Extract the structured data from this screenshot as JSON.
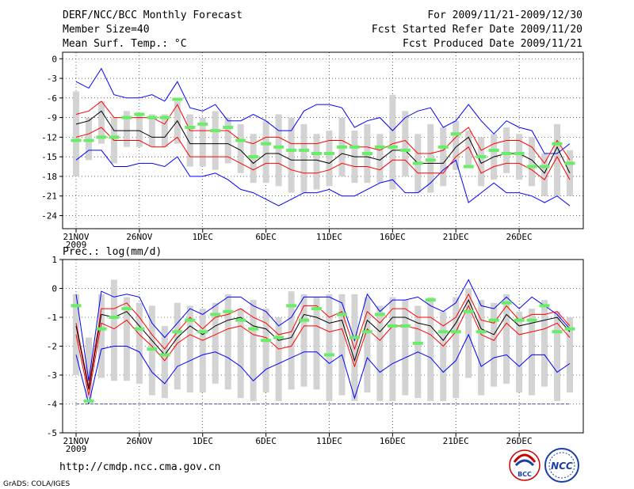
{
  "header": {
    "left": [
      "DERF/NCC/BCC Monthly Forecast",
      "Member Size=40",
      "Mean Surf. Temp.: °C"
    ],
    "right": [
      "For 2009/11/21-2009/12/30",
      "Fcst Started Refer Date 2009/11/20",
      "Fcst Produced Date 2009/11/21"
    ]
  },
  "footer": {
    "url": "http://cmdp.ncc.cma.gov.cn",
    "credit": "GrADS: COLA/IGES",
    "logo1": "BCC",
    "logo2": "NCC"
  },
  "colors": {
    "outer": "#0000ff",
    "inner": "#ff0000",
    "mean": "#000000",
    "box": "#d3d3d3",
    "marker": "#66ee66",
    "dash": "#5555aa"
  },
  "chart_data": [
    {
      "type": "line",
      "title": "Mean Surf. Temp.: °C",
      "xticks": [
        "21NOV",
        "26NOV",
        "1DEC",
        "6DEC",
        "11DEC",
        "16DEC",
        "21DEC",
        "26DEC"
      ],
      "xtick_year": "2009",
      "ylim": [
        -26,
        1
      ],
      "yticks": [
        0,
        -3,
        -6,
        -9,
        -12,
        -15,
        -18,
        -21,
        -24
      ],
      "days": 40,
      "series": [
        {
          "name": "max",
          "values": [
            -3.5,
            -4.5,
            -1.5,
            -5.5,
            -6,
            -6,
            -5.5,
            -6.5,
            -3.5,
            -7.5,
            -8,
            -7,
            -9.5,
            -9.5,
            -8.5,
            -9.5,
            -11,
            -11,
            -8,
            -7,
            -7,
            -7.5,
            -10.5,
            -9.5,
            -9,
            -11,
            -9,
            -8,
            -7.5,
            -10.5,
            -9.5,
            -7,
            -9.5,
            -11.5,
            -9.5,
            -10.5,
            -11,
            -14.5,
            -14.5,
            -13
          ]
        },
        {
          "name": "upper",
          "values": [
            -8.5,
            -8,
            -6.5,
            -9,
            -9,
            -9,
            -9,
            -10,
            -7,
            -11,
            -11,
            -11,
            -11,
            -12.5,
            -13,
            -12,
            -12,
            -13,
            -13,
            -13,
            -12.5,
            -12.5,
            -13.5,
            -13.5,
            -14,
            -13,
            -12.5,
            -14.5,
            -14.5,
            -14,
            -12,
            -10.5,
            -14,
            -13,
            -12.5,
            -12.5,
            -13.5,
            -16,
            -12.5,
            -15.5
          ]
        },
        {
          "name": "mean",
          "values": [
            -10,
            -9.5,
            -8,
            -11,
            -11,
            -11,
            -12,
            -12,
            -9.5,
            -13,
            -13,
            -13,
            -13,
            -14,
            -16,
            -14.5,
            -14.5,
            -15.5,
            -15.5,
            -15.5,
            -16,
            -14.5,
            -15,
            -15,
            -15.5,
            -14,
            -14,
            -16,
            -16,
            -16,
            -13.5,
            -12,
            -16,
            -15,
            -14.5,
            -14.5,
            -15.5,
            -17.5,
            -13.5,
            -17.5
          ]
        },
        {
          "name": "lower",
          "values": [
            -12,
            -11.5,
            -10.5,
            -12.5,
            -12.5,
            -12.5,
            -13.5,
            -13.5,
            -12,
            -15,
            -15,
            -15,
            -15,
            -16,
            -17,
            -16,
            -16,
            -17,
            -17.5,
            -17.5,
            -17,
            -16,
            -16.5,
            -16.5,
            -17,
            -15.5,
            -15.5,
            -17.5,
            -17.5,
            -17.5,
            -15,
            -13.5,
            -17.5,
            -16.5,
            -16,
            -16,
            -17,
            -18.5,
            -15,
            -18.5
          ]
        },
        {
          "name": "min",
          "values": [
            -15.5,
            -14,
            -14,
            -16.5,
            -16.5,
            -16,
            -16,
            -16.5,
            -15,
            -18,
            -18,
            -17.5,
            -18.5,
            -20,
            -20.5,
            -21.5,
            -22.5,
            -21.5,
            -20.5,
            -20.5,
            -20,
            -21,
            -21,
            -20,
            -19,
            -18.5,
            -20.5,
            -20.5,
            -19,
            -17,
            -15.5,
            -22,
            -20.5,
            -19,
            -20.5,
            -20.5,
            -21,
            -22,
            -21,
            -22.5
          ]
        },
        {
          "name": "green",
          "values": [
            -12.5,
            -12.5,
            -12,
            -12,
            -9,
            -8.5,
            -9,
            -9,
            -6.2,
            -10.5,
            -10,
            -11,
            -10.5,
            -12.5,
            -15,
            -13,
            -13.5,
            -14,
            -14,
            -14.5,
            -14.5,
            -13.5,
            -13.5,
            -14.5,
            -13.5,
            -13.5,
            -14,
            -16,
            -15.5,
            -13.5,
            -11.5,
            -16.5,
            -15,
            -14,
            -14.5,
            -14.5,
            -16.5,
            -16.5,
            -13,
            -16
          ]
        },
        {
          "name": "box_top",
          "values": [
            -5,
            -9,
            -6.5,
            -9,
            -8,
            -8.5,
            -8.5,
            -8.5,
            -6.5,
            -8.5,
            -9,
            -8,
            -9,
            -10,
            -11.5,
            -9.5,
            -8.5,
            -9,
            -10,
            -11.5,
            -11,
            -9,
            -11,
            -10,
            -11.5,
            -5.5,
            -8,
            -11.5,
            -10,
            -10.5,
            -9.5,
            -11,
            -12,
            -11.5,
            -10.5,
            -11.5,
            -12,
            -14.5,
            -10,
            -14
          ]
        },
        {
          "name": "box_bottom",
          "values": [
            -18,
            -15.5,
            -13,
            -16,
            -13.5,
            -13.5,
            -13.5,
            -13.5,
            -13,
            -16.5,
            -16.5,
            -17,
            -16,
            -17.5,
            -19,
            -19,
            -19.5,
            -20.5,
            -20.5,
            -20,
            -19.5,
            -18,
            -19,
            -19,
            -19,
            -20,
            -18,
            -20.5,
            -20.5,
            -19.5,
            -17,
            -16.5,
            -19.5,
            -18.5,
            -17.5,
            -18.5,
            -19.5,
            -21,
            -21,
            -21
          ]
        }
      ]
    },
    {
      "type": "line",
      "title": "Prec.: log(mm/d)",
      "xticks": [
        "21NOV",
        "26NOV",
        "1DEC",
        "6DEC",
        "11DEC",
        "16DEC",
        "21DEC",
        "26DEC"
      ],
      "xtick_year": "2009",
      "ylim": [
        -5,
        1
      ],
      "yticks": [
        1,
        0,
        -1,
        -2,
        -3,
        -4,
        -5
      ],
      "baseline": -4,
      "days": 40,
      "series": [
        {
          "name": "max",
          "values": [
            -0.2,
            -3.2,
            -0.1,
            -0.3,
            -0.2,
            -0.3,
            -1.2,
            -1.7,
            -1.2,
            -0.7,
            -0.9,
            -0.6,
            -0.3,
            -0.3,
            -0.6,
            -0.8,
            -1.3,
            -1,
            -0.3,
            -0.3,
            -0.3,
            -0.5,
            -1.8,
            -0.2,
            -0.8,
            -0.4,
            -0.4,
            -0.3,
            -0.6,
            -0.8,
            -0.5,
            0.3,
            -0.6,
            -0.7,
            -0.3,
            -0.7,
            -0.3,
            -0.6,
            -0.9,
            -1.4
          ]
        },
        {
          "name": "upper",
          "values": [
            -1.2,
            -3.4,
            -0.7,
            -0.7,
            -0.5,
            -1,
            -1.6,
            -2.1,
            -1.5,
            -1,
            -1.4,
            -1,
            -0.9,
            -0.7,
            -1,
            -1.2,
            -1.6,
            -1.5,
            -0.6,
            -0.6,
            -1,
            -0.8,
            -2.1,
            -0.8,
            -1.2,
            -0.7,
            -0.7,
            -1,
            -1,
            -1.3,
            -1,
            -0.2,
            -1.1,
            -1.2,
            -0.6,
            -1.1,
            -0.9,
            -0.9,
            -0.8,
            -1.3
          ]
        },
        {
          "name": "mean",
          "values": [
            -1.3,
            -3.5,
            -0.9,
            -1,
            -0.8,
            -1.3,
            -1.8,
            -2.3,
            -1.7,
            -1.3,
            -1.6,
            -1.3,
            -1.1,
            -1,
            -1.3,
            -1.4,
            -1.8,
            -1.7,
            -0.9,
            -1,
            -1.2,
            -1.1,
            -2.5,
            -1.1,
            -1.5,
            -1,
            -1,
            -1.2,
            -1.3,
            -1.8,
            -1.2,
            -0.4,
            -1.4,
            -1.6,
            -0.9,
            -1.3,
            -1.2,
            -1.1,
            -1,
            -1.5
          ]
        },
        {
          "name": "lower",
          "values": [
            -1.6,
            -3.7,
            -1.2,
            -1.4,
            -1.1,
            -1.6,
            -2,
            -2.5,
            -1.9,
            -1.6,
            -1.8,
            -1.6,
            -1.4,
            -1.3,
            -1.6,
            -1.7,
            -2.1,
            -2,
            -1.3,
            -1.3,
            -1.5,
            -1.4,
            -2.7,
            -1.4,
            -1.8,
            -1.3,
            -1.3,
            -1.4,
            -1.6,
            -2,
            -1.5,
            -0.6,
            -1.6,
            -1.8,
            -1.2,
            -1.6,
            -1.5,
            -1.4,
            -1.2,
            -1.7
          ]
        },
        {
          "name": "min",
          "values": [
            -2.3,
            -4,
            -2.1,
            -2,
            -2,
            -2.2,
            -2.9,
            -3.3,
            -2.7,
            -2.5,
            -2.3,
            -2.2,
            -2.4,
            -2.7,
            -3.2,
            -2.8,
            -2.6,
            -2.4,
            -2.2,
            -2.2,
            -2.6,
            -2.3,
            -3.8,
            -2.4,
            -2.9,
            -2.6,
            -2.4,
            -2.2,
            -2.4,
            -2.9,
            -2.5,
            -1.6,
            -2.7,
            -2.4,
            -2.3,
            -2.7,
            -2.3,
            -2.3,
            -2.9,
            -2.6
          ]
        },
        {
          "name": "green",
          "values": [
            -0.6,
            -3.9,
            -1.4,
            -1,
            -0.7,
            -1.4,
            -2.1,
            -2.3,
            -1.5,
            -1.1,
            -1.5,
            -0.9,
            -0.8,
            -1.1,
            -1.4,
            -1.8,
            -1.7,
            -0.6,
            -1.1,
            -0.7,
            -2.3,
            -0.9,
            -1.7,
            -1.5,
            -0.9,
            -1.3,
            -1.3,
            -1.9,
            -0.4,
            -1.5,
            -1.5,
            -0.8,
            -1.5,
            -1.1,
            -0.5,
            -1.1,
            -1.1,
            -0.6,
            -1.5,
            -1.4
          ]
        },
        {
          "name": "box_top",
          "values": [
            -0.2,
            -1.7,
            -0.2,
            0.3,
            -0.3,
            -0.5,
            -0.6,
            -1.3,
            -0.5,
            -0.6,
            -0.7,
            -0.5,
            -0.2,
            -0.7,
            -0.4,
            -0.7,
            -1,
            -0.1,
            -0.2,
            -0.3,
            -0.2,
            -0.2,
            -0.2,
            -0.3,
            -0.6,
            -0.3,
            -0.4,
            -0.6,
            -0.3,
            -0.8,
            -0.3,
            0,
            -0.4,
            -0.5,
            -0.2,
            -0.8,
            -0.7,
            -0.4,
            -0.8,
            -1
          ]
        },
        {
          "name": "box_bottom",
          "values": [
            -3,
            -3.8,
            -3.1,
            -3.2,
            -3.2,
            -3.3,
            -3.7,
            -3.8,
            -3.5,
            -3.6,
            -3.6,
            -3.3,
            -3.5,
            -3.8,
            -3.9,
            -3.6,
            -3.9,
            -3.5,
            -3.4,
            -3.5,
            -3.9,
            -3.7,
            -3.9,
            -3.6,
            -3.9,
            -3.9,
            -3.7,
            -3.8,
            -3.9,
            -3.9,
            -3.8,
            -3.1,
            -3.7,
            -3.4,
            -3.3,
            -3.6,
            -3.7,
            -3.4,
            -3.9,
            -3.6
          ]
        }
      ]
    }
  ]
}
